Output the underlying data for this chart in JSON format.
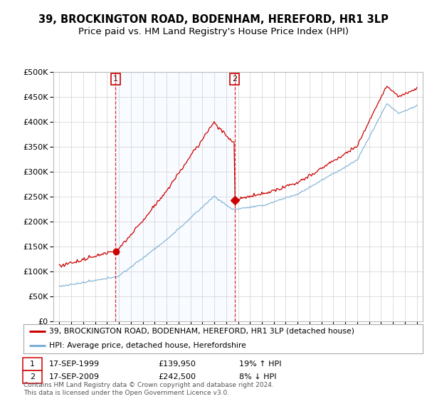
{
  "title": "39, BROCKINGTON ROAD, BODENHAM, HEREFORD, HR1 3LP",
  "subtitle": "Price paid vs. HM Land Registry's House Price Index (HPI)",
  "ylim": [
    0,
    500000
  ],
  "yticks": [
    0,
    50000,
    100000,
    150000,
    200000,
    250000,
    300000,
    350000,
    400000,
    450000,
    500000
  ],
  "sale1_date": 1999.71,
  "sale1_price": 139950,
  "sale2_date": 2009.71,
  "sale2_price": 242500,
  "red_line_color": "#cc0000",
  "blue_line_color": "#7bafd4",
  "blue_fill_color": "#ddeeff",
  "vline_color": "#cc0000",
  "bg_color": "#ffffff",
  "grid_color": "#d8d8d8",
  "legend_label_red": "39, BROCKINGTON ROAD, BODENHAM, HEREFORD, HR1 3LP (detached house)",
  "legend_label_blue": "HPI: Average price, detached house, Herefordshire",
  "footer": "Contains HM Land Registry data © Crown copyright and database right 2024.\nThis data is licensed under the Open Government Licence v3.0.",
  "title_fontsize": 10.5,
  "subtitle_fontsize": 9.5,
  "xmin": 1994.5,
  "xmax": 2025.5
}
